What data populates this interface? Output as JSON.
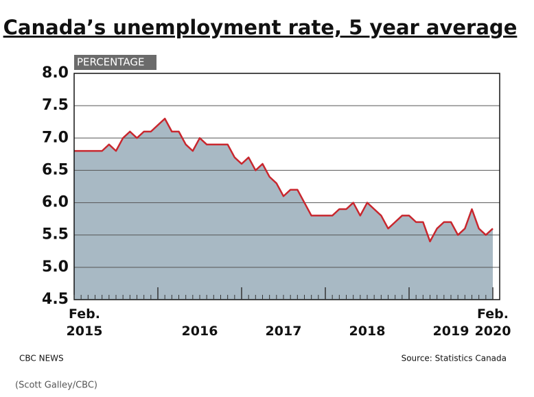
{
  "chart_data": {
    "type": "area",
    "title": "Canada’s unemployment rate, 5 year average",
    "y_label": "PERCENTAGE",
    "source": "Source: Statistics Canada",
    "brand": "CBC NEWS",
    "credit": "(Scott Galley/CBC)",
    "categories": [
      "Feb.\n2015",
      null,
      null,
      null,
      null,
      null,
      null,
      null,
      null,
      null,
      null,
      null,
      null,
      null,
      null,
      null,
      null,
      null,
      "2016",
      null,
      null,
      null,
      null,
      null,
      null,
      null,
      null,
      null,
      null,
      null,
      "2017",
      null,
      null,
      null,
      null,
      null,
      null,
      null,
      null,
      null,
      null,
      null,
      "2018",
      null,
      null,
      null,
      null,
      null,
      null,
      null,
      null,
      null,
      null,
      null,
      "2019",
      null,
      null,
      null,
      null,
      null,
      "Feb.\n2020"
    ],
    "values": [
      6.8,
      6.8,
      6.8,
      6.8,
      6.8,
      6.9,
      6.8,
      7.0,
      7.1,
      7.0,
      7.1,
      7.1,
      7.2,
      7.3,
      7.1,
      7.1,
      6.9,
      6.8,
      7.0,
      6.9,
      6.9,
      6.9,
      6.9,
      6.7,
      6.6,
      6.7,
      6.5,
      6.6,
      6.4,
      6.3,
      6.1,
      6.2,
      6.2,
      6.0,
      5.8,
      5.8,
      5.8,
      5.8,
      5.9,
      5.9,
      6.0,
      5.8,
      6.0,
      5.9,
      5.8,
      5.6,
      5.7,
      5.8,
      5.8,
      5.7,
      5.7,
      5.4,
      5.6,
      5.7,
      5.7,
      5.5,
      5.6,
      5.9,
      5.6,
      5.5,
      5.6
    ],
    "color": "#c8262d",
    "fill": "#a8b9c4",
    "ylim": [
      4.5,
      8.0
    ],
    "yticks": [
      {
        "value": 4.5,
        "label": "4.5"
      },
      {
        "value": 5.0,
        "label": "5.0"
      },
      {
        "value": 5.5,
        "label": "5.5"
      },
      {
        "value": 6.0,
        "label": "6.0"
      },
      {
        "value": 6.5,
        "label": "6.5"
      },
      {
        "value": 7.0,
        "label": "7.0"
      },
      {
        "value": 7.5,
        "label": "7.5"
      },
      {
        "value": 8.0,
        "label": "8.0"
      }
    ],
    "grid": true
  }
}
